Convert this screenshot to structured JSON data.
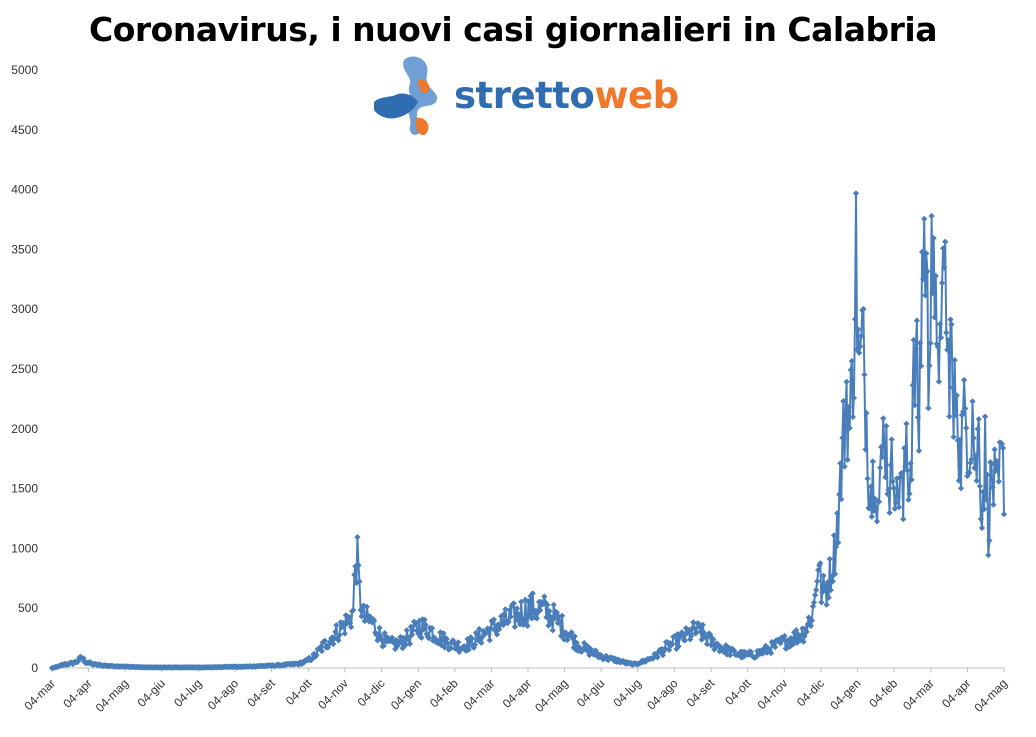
{
  "chart_data": {
    "type": "line",
    "title": "Coronavirus, i nuovi casi giornalieri in Calabria",
    "ylim": [
      0,
      5000
    ],
    "yticks": [
      0,
      500,
      1000,
      1500,
      2000,
      2500,
      3000,
      3500,
      4000,
      4500,
      5000
    ],
    "xlabels": [
      "04-mar",
      "04-apr",
      "04-mag",
      "04-giu",
      "04-lug",
      "04-ago",
      "04-set",
      "04-ott",
      "04-nov",
      "04-dic",
      "04-gen",
      "04-feb",
      "04-mar",
      "04-apr",
      "04-mag",
      "04-giu",
      "04-lug",
      "04-ago",
      "04-set",
      "04-ott",
      "04-nov",
      "04-dic",
      "04-gen",
      "04-feb",
      "04-mar",
      "04-apr",
      "04-mag"
    ],
    "series_color": "#4a7ebb",
    "keypoints": [
      [
        0,
        0
      ],
      [
        5,
        10
      ],
      [
        12,
        30
      ],
      [
        20,
        40
      ],
      [
        25,
        60
      ],
      [
        28,
        90
      ],
      [
        32,
        50
      ],
      [
        40,
        30
      ],
      [
        50,
        20
      ],
      [
        60,
        15
      ],
      [
        75,
        10
      ],
      [
        90,
        5
      ],
      [
        110,
        5
      ],
      [
        130,
        5
      ],
      [
        150,
        5
      ],
      [
        165,
        10
      ],
      [
        180,
        10
      ],
      [
        195,
        15
      ],
      [
        210,
        20
      ],
      [
        220,
        25
      ],
      [
        235,
        35
      ],
      [
        243,
        60
      ],
      [
        250,
        100
      ],
      [
        258,
        180
      ],
      [
        265,
        240
      ],
      [
        272,
        300
      ],
      [
        278,
        360
      ],
      [
        283,
        400
      ],
      [
        287,
        470
      ],
      [
        289,
        880
      ],
      [
        291,
        900
      ],
      [
        293,
        620
      ],
      [
        297,
        420
      ],
      [
        305,
        380
      ],
      [
        312,
        280
      ],
      [
        320,
        200
      ],
      [
        330,
        200
      ],
      [
        340,
        260
      ],
      [
        350,
        350
      ],
      [
        360,
        320
      ],
      [
        370,
        250
      ],
      [
        380,
        200
      ],
      [
        390,
        180
      ],
      [
        400,
        210
      ],
      [
        410,
        280
      ],
      [
        420,
        330
      ],
      [
        430,
        380
      ],
      [
        440,
        430
      ],
      [
        450,
        480
      ],
      [
        460,
        500
      ],
      [
        470,
        480
      ],
      [
        478,
        420
      ],
      [
        485,
        360
      ],
      [
        493,
        280
      ],
      [
        500,
        200
      ],
      [
        510,
        150
      ],
      [
        520,
        110
      ],
      [
        530,
        80
      ],
      [
        540,
        60
      ],
      [
        548,
        40
      ],
      [
        555,
        30
      ],
      [
        565,
        60
      ],
      [
        575,
        100
      ],
      [
        585,
        170
      ],
      [
        595,
        220
      ],
      [
        605,
        270
      ],
      [
        612,
        310
      ],
      [
        618,
        300
      ],
      [
        628,
        220
      ],
      [
        638,
        170
      ],
      [
        648,
        130
      ],
      [
        658,
        110
      ],
      [
        668,
        110
      ],
      [
        678,
        140
      ],
      [
        688,
        180
      ],
      [
        698,
        220
      ],
      [
        708,
        260
      ],
      [
        716,
        300
      ],
      [
        722,
        400
      ],
      [
        726,
        520
      ],
      [
        730,
        900
      ],
      [
        734,
        600
      ],
      [
        738,
        680
      ],
      [
        742,
        800
      ],
      [
        746,
        1000
      ],
      [
        750,
        1400
      ],
      [
        754,
        1900
      ],
      [
        757,
        2300
      ],
      [
        760,
        2000
      ],
      [
        763,
        2500
      ],
      [
        766,
        3450
      ],
      [
        769,
        2400
      ],
      [
        772,
        2700
      ],
      [
        775,
        2300
      ],
      [
        778,
        1700
      ],
      [
        781,
        1450
      ],
      [
        784,
        1800
      ],
      [
        787,
        1350
      ],
      [
        790,
        1600
      ],
      [
        793,
        2100
      ],
      [
        796,
        1700
      ],
      [
        799,
        1500
      ],
      [
        802,
        1850
      ],
      [
        805,
        1350
      ],
      [
        808,
        1650
      ],
      [
        811,
        1300
      ],
      [
        814,
        2000
      ],
      [
        817,
        1500
      ],
      [
        820,
        2200
      ],
      [
        823,
        2600
      ],
      [
        826,
        2000
      ],
      [
        829,
        3350
      ],
      [
        832,
        3600
      ],
      [
        835,
        2500
      ],
      [
        838,
        3850
      ],
      [
        841,
        2600
      ],
      [
        844,
        3100
      ],
      [
        847,
        2300
      ],
      [
        850,
        3800
      ],
      [
        853,
        2400
      ],
      [
        856,
        2800
      ],
      [
        859,
        2000
      ],
      [
        862,
        2500
      ],
      [
        865,
        1700
      ],
      [
        868,
        2000
      ],
      [
        871,
        2100
      ],
      [
        874,
        1900
      ],
      [
        877,
        2200
      ],
      [
        880,
        1600
      ],
      [
        883,
        2000
      ],
      [
        886,
        1300
      ],
      [
        889,
        1800
      ],
      [
        892,
        1200
      ],
      [
        895,
        1600
      ],
      [
        898,
        1500
      ],
      [
        901,
        1400
      ],
      [
        904,
        1700
      ],
      [
        907,
        1600
      ]
    ]
  }
}
